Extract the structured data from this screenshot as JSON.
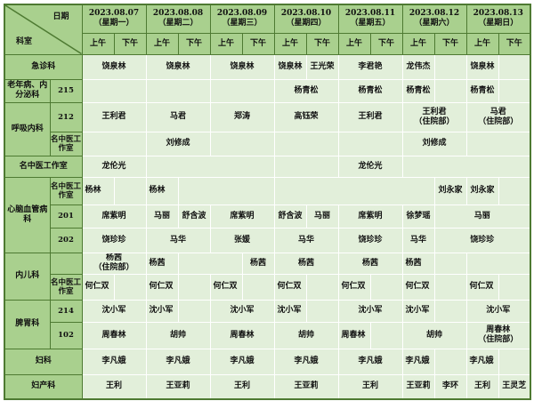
{
  "corner": {
    "date_label": "日期",
    "dept_label": "科室"
  },
  "days": [
    {
      "date": "2023.08.07",
      "weekday": "（星期一）"
    },
    {
      "date": "2023.08.08",
      "weekday": "（星期二）"
    },
    {
      "date": "2023.08.09",
      "weekday": "（星期三）"
    },
    {
      "date": "2023.08.10",
      "weekday": "（星期四）"
    },
    {
      "date": "2023.08.11",
      "weekday": "（星期五）"
    },
    {
      "date": "2023.08.12",
      "weekday": "（星期六）"
    },
    {
      "date": "2023.08.13",
      "weekday": "（星期日）"
    }
  ],
  "am_label": "上午",
  "pm_label": "下午",
  "rows": [
    {
      "dept": "急诊科",
      "dept_rows": 1,
      "full": true,
      "h": 28,
      "cells": [
        [
          "饶泉林",
          2
        ],
        [
          "饶泉林",
          2
        ],
        [
          "饶泉林",
          2
        ],
        [
          "饶泉林",
          1
        ],
        [
          "王光荣",
          1
        ],
        [
          "李君艳",
          2
        ],
        [
          "龙伟杰",
          1
        ],
        [
          "",
          1
        ],
        [
          "饶泉林",
          1
        ],
        [
          "",
          1
        ]
      ]
    },
    {
      "dept": "老年病、内分泌科",
      "dept_rows": 1,
      "sub": "215",
      "h": 26,
      "cells": [
        [
          "",
          2
        ],
        [
          "",
          2
        ],
        [
          "",
          2
        ],
        [
          "杨青松",
          2
        ],
        [
          "杨青松",
          2
        ],
        [
          "杨青松",
          1
        ],
        [
          "",
          1
        ],
        [
          "杨青松",
          1
        ],
        [
          "",
          1
        ]
      ]
    },
    {
      "dept": "呼吸内科",
      "dept_rows": 2,
      "sub": "212",
      "h": 33,
      "cells": [
        [
          "王利君",
          2
        ],
        [
          "马君",
          2
        ],
        [
          "郑涛",
          2
        ],
        [
          "高钰荣",
          2
        ],
        [
          "王利君",
          2
        ],
        [
          "王利君\n（住院部）",
          2
        ],
        [
          "马君\n（住院部）",
          2
        ]
      ]
    },
    {
      "sub": "名中医工作室",
      "h": 27,
      "cells": [
        [
          "",
          2
        ],
        [
          "刘修成",
          2
        ],
        [
          "",
          2
        ],
        [
          "",
          2
        ],
        [
          "",
          2
        ],
        [
          "刘修成",
          2
        ],
        [
          "",
          2
        ]
      ]
    },
    {
      "dept": "名中医工作室",
      "dept_rows": 1,
      "full": true,
      "h": 24,
      "cells": [
        [
          "龙伦光",
          2
        ],
        [
          "",
          4
        ],
        [
          "",
          2
        ],
        [
          "龙伦光",
          2
        ],
        [
          "",
          4
        ]
      ]
    },
    {
      "dept": "心脑血管病科",
      "dept_rows": 3,
      "sub": "名中医工作室",
      "h": 31,
      "cells": [
        [
          "杨林",
          1,
          "l"
        ],
        [
          "",
          1
        ],
        [
          "杨林",
          1,
          "l"
        ],
        [
          "",
          3
        ],
        [
          "",
          5
        ],
        [
          "刘永家",
          1
        ],
        [
          "刘永家",
          1
        ],
        [
          "",
          1
        ]
      ]
    },
    {
      "sub": "201",
      "h": 26,
      "cells": [
        [
          "席紫明",
          2
        ],
        [
          "马丽",
          1
        ],
        [
          "舒含波",
          1
        ],
        [
          "席紫明",
          2
        ],
        [
          "舒含波",
          1
        ],
        [
          "马丽",
          1
        ],
        [
          "席紫明",
          2
        ],
        [
          "徐梦瑶",
          1
        ],
        [
          "马丽",
          3
        ]
      ]
    },
    {
      "sub": "202",
      "h": 28,
      "cells": [
        [
          "饶珍珍",
          2
        ],
        [
          "马华",
          2
        ],
        [
          "张媛",
          2
        ],
        [
          "马华",
          2
        ],
        [
          "饶珍珍",
          2
        ],
        [
          "马华",
          1
        ],
        [
          "饶珍珍",
          3
        ]
      ]
    },
    {
      "dept": "内儿科",
      "dept_rows": 2,
      "sub": "",
      "h": 24,
      "cells": [
        [
          "杨茜\n（住院部）",
          2
        ],
        [
          "杨茜",
          1,
          "l"
        ],
        [
          "",
          2
        ],
        [
          "杨茜",
          1
        ],
        [
          "杨茜",
          2
        ],
        [
          "杨茜",
          2
        ],
        [
          "杨茜",
          1,
          "l"
        ],
        [
          "",
          1
        ],
        [
          "",
          2
        ]
      ]
    },
    {
      "sub": "名中医工作室",
      "h": 29,
      "cells": [
        [
          "何仁双",
          1,
          "l"
        ],
        [
          "",
          1
        ],
        [
          "何仁双",
          1,
          "l"
        ],
        [
          "",
          1
        ],
        [
          "何仁双",
          1,
          "l"
        ],
        [
          "",
          1
        ],
        [
          "何仁双",
          1,
          "l"
        ],
        [
          "",
          1
        ],
        [
          "何仁双",
          1,
          "l"
        ],
        [
          "",
          1
        ],
        [
          "何仁双",
          1,
          "l"
        ],
        [
          "",
          1
        ],
        [
          "何仁双",
          1,
          "l"
        ],
        [
          "",
          1
        ]
      ]
    },
    {
      "dept": "脾胃科",
      "dept_rows": 2,
      "sub": "214",
      "h": 25,
      "cells": [
        [
          "沈小军",
          2
        ],
        [
          "沈小军",
          1,
          "l"
        ],
        [
          "",
          1
        ],
        [
          "沈小军",
          2
        ],
        [
          "沈小军",
          1,
          "l"
        ],
        [
          "",
          1
        ],
        [
          "沈小军",
          2
        ],
        [
          "沈小军",
          1,
          "l"
        ],
        [
          "",
          1
        ],
        [
          "沈小军",
          2
        ]
      ]
    },
    {
      "sub": "102",
      "h": 30,
      "cells": [
        [
          "周春林",
          2
        ],
        [
          "胡帅",
          2
        ],
        [
          "周春林",
          2
        ],
        [
          "胡帅",
          2
        ],
        [
          "周春林",
          1,
          "l"
        ],
        [
          "",
          1
        ],
        [
          "胡帅",
          2
        ],
        [
          "周春林\n（住院部）",
          2
        ]
      ]
    },
    {
      "dept": "妇科",
      "dept_rows": 1,
      "full": true,
      "h": 29,
      "cells": [
        [
          "李凡娥",
          2
        ],
        [
          "李凡娥",
          2
        ],
        [
          "李凡娥",
          2
        ],
        [
          "李凡娥",
          2
        ],
        [
          "李凡娥",
          2
        ],
        [
          "李凡娥",
          1,
          "l"
        ],
        [
          "",
          1
        ],
        [
          "李凡娥",
          1,
          "l"
        ],
        [
          "",
          1
        ]
      ]
    },
    {
      "dept": "妇产科",
      "dept_rows": 1,
      "full": true,
      "h": 28,
      "cells": [
        [
          "王利",
          2
        ],
        [
          "王亚莉",
          2
        ],
        [
          "王利",
          2
        ],
        [
          "王亚莉",
          2
        ],
        [
          "王利",
          2
        ],
        [
          "王亚莉",
          1
        ],
        [
          "李环",
          1
        ],
        [
          "王利",
          1
        ],
        [
          "王灵芝",
          1
        ]
      ]
    }
  ],
  "colors": {
    "header_bg": "#a9d08e",
    "body_bg": "#e2efda",
    "border": "#4e7a32"
  }
}
